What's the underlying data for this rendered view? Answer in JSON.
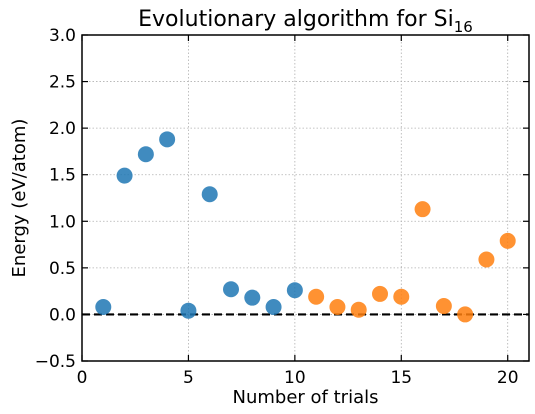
{
  "chart_data": {
    "type": "scatter",
    "title": "Evolutionary algorithm for Si",
    "title_subscript": "16",
    "xlabel": "Number of trials",
    "ylabel": "Energy (eV/atom)",
    "xlim": [
      0,
      21
    ],
    "ylim": [
      -0.5,
      3.0
    ],
    "xticks": [
      0,
      5,
      10,
      15,
      20
    ],
    "xtick_labels": [
      "0",
      "5",
      "10",
      "15",
      "20"
    ],
    "yticks": [
      -0.5,
      0.0,
      0.5,
      1.0,
      1.5,
      2.0,
      2.5,
      3.0
    ],
    "ytick_labels": [
      "−0.5",
      "0.0",
      "0.5",
      "1.0",
      "1.5",
      "2.0",
      "2.5",
      "3.0"
    ],
    "grid": true,
    "reference_line": {
      "y": 0.0,
      "style": "dashed",
      "color": "#000000"
    },
    "series": [
      {
        "color": "#1f77b4",
        "x": [
          1,
          2,
          3,
          4,
          5,
          6,
          7,
          8,
          9,
          10
        ],
        "y": [
          0.08,
          1.49,
          1.72,
          1.88,
          0.04,
          1.29,
          0.27,
          0.18,
          0.08,
          0.26
        ]
      },
      {
        "color": "#ff7f0e",
        "x": [
          11,
          12,
          13,
          14,
          15,
          16,
          17,
          18,
          19,
          20
        ],
        "y": [
          0.19,
          0.08,
          0.05,
          0.22,
          0.19,
          1.13,
          0.09,
          0.0,
          0.59,
          0.79
        ]
      }
    ]
  }
}
